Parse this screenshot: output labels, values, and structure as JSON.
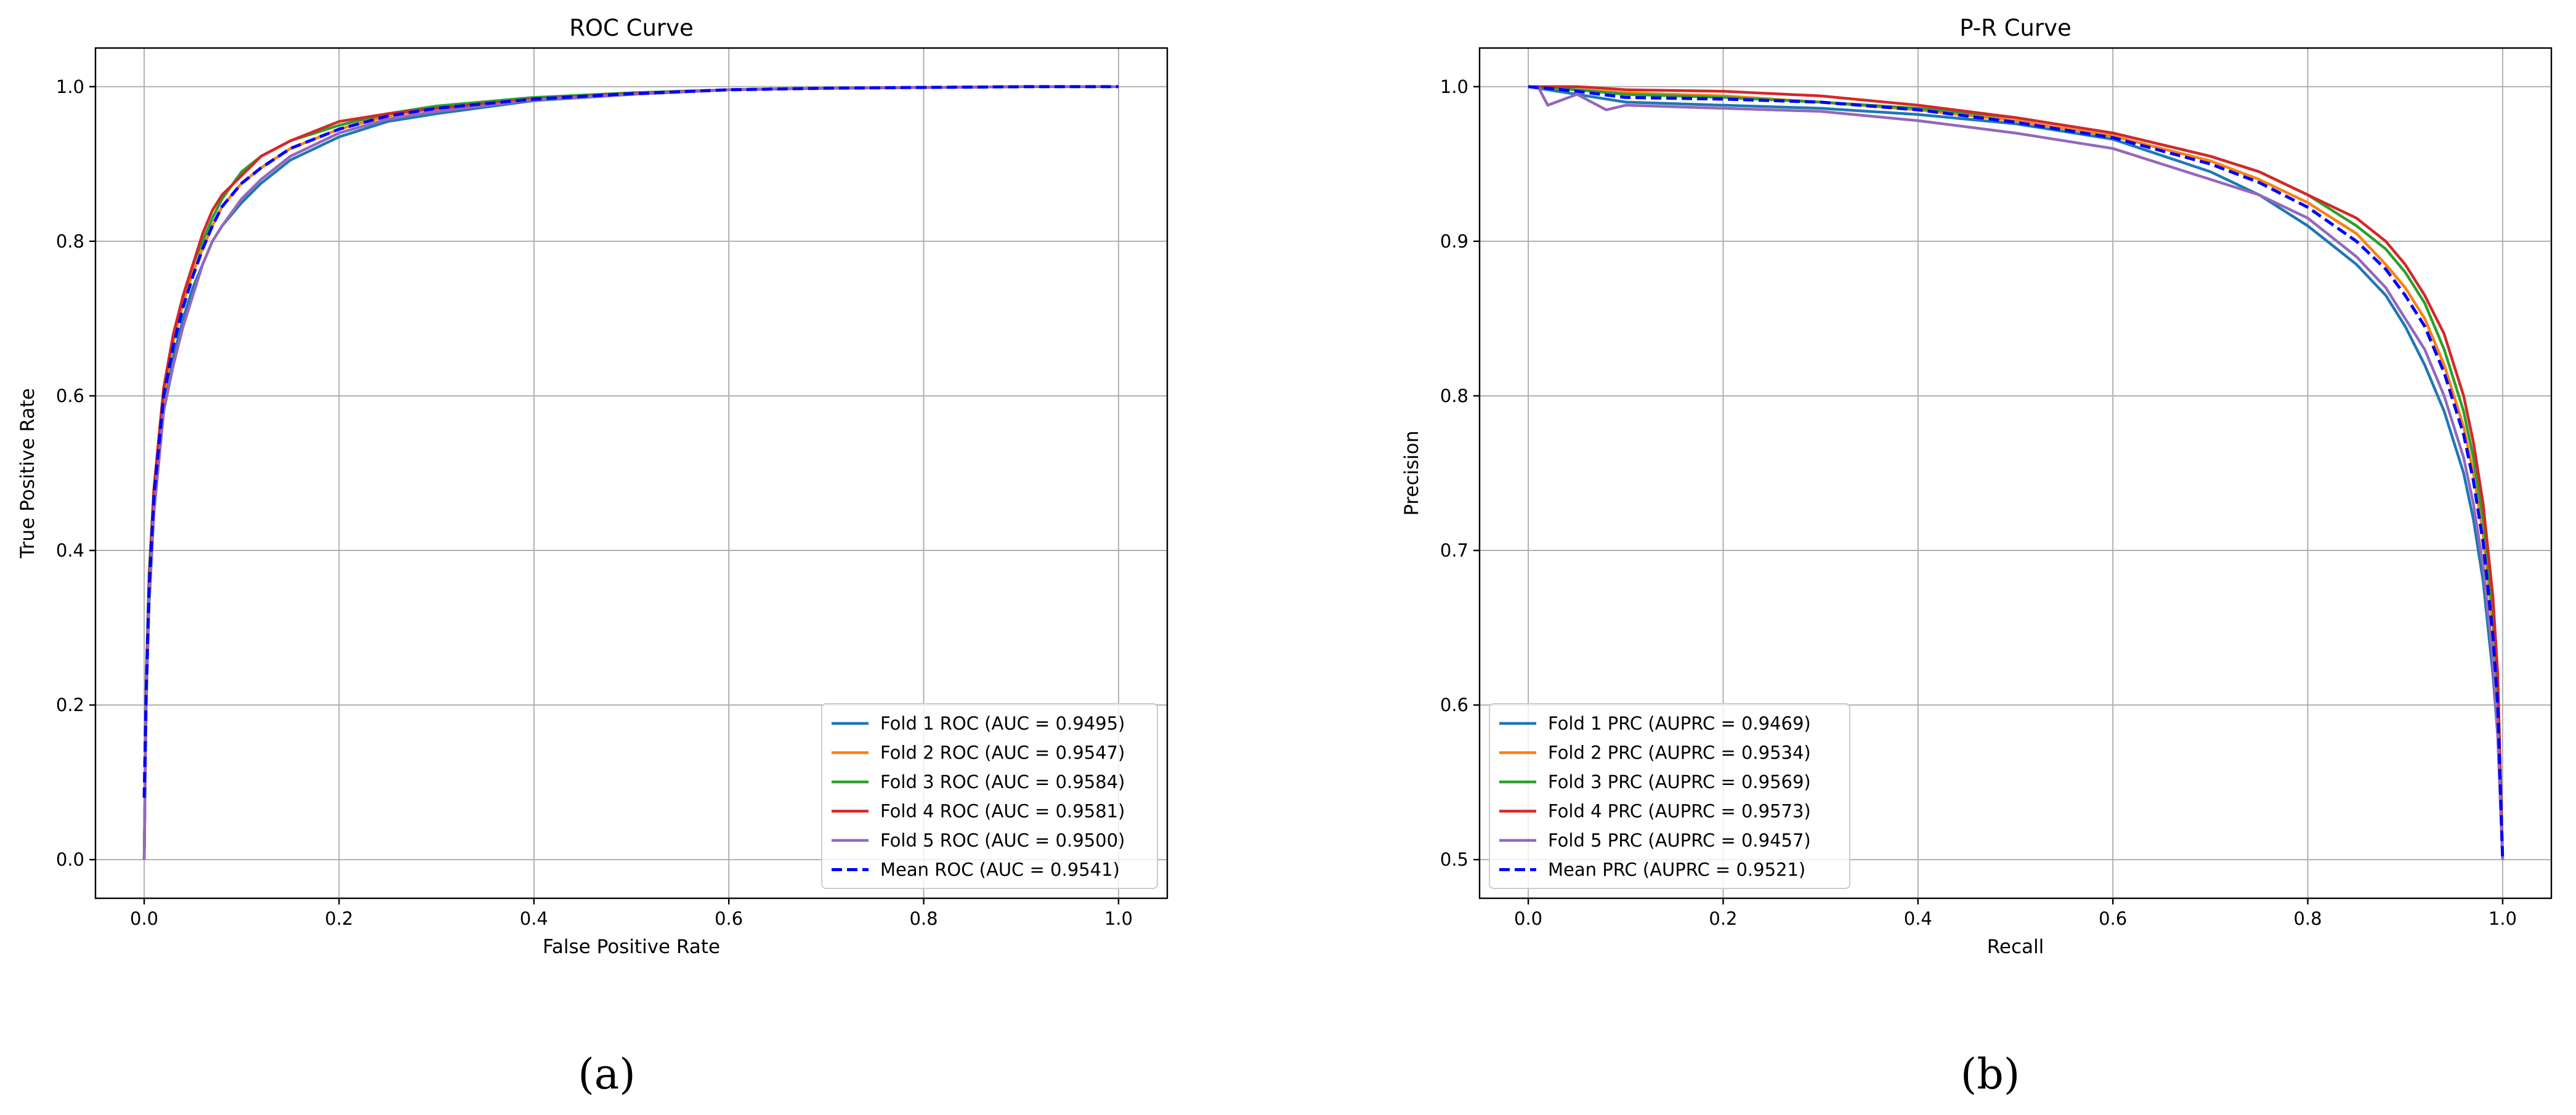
{
  "chart_data": [
    {
      "type": "line",
      "title": "ROC Curve",
      "xlabel": "False Positive Rate",
      "ylabel": "True Positive Rate",
      "xlim": [
        -0.05,
        1.05
      ],
      "ylim": [
        -0.05,
        1.05
      ],
      "xticks": [
        0.0,
        0.2,
        0.4,
        0.6,
        0.8,
        1.0
      ],
      "yticks": [
        0.0,
        0.2,
        0.4,
        0.6,
        0.8,
        1.0
      ],
      "tick_labels": [
        "0.0",
        "0.2",
        "0.4",
        "0.6",
        "0.8",
        "1.0"
      ],
      "grid": true,
      "legend_position": "lower-right",
      "caption": "(a)",
      "series": [
        {
          "name": "Fold 1 ROC (AUC = 0.9495)",
          "color": "#1f77b4",
          "dashed": false,
          "x": [
            0,
            0.002,
            0.005,
            0.01,
            0.02,
            0.03,
            0.04,
            0.05,
            0.06,
            0.07,
            0.08,
            0.1,
            0.12,
            0.15,
            0.2,
            0.25,
            0.3,
            0.4,
            0.5,
            0.6,
            0.7,
            0.8,
            0.9,
            1.0
          ],
          "y": [
            0,
            0.2,
            0.33,
            0.45,
            0.58,
            0.65,
            0.7,
            0.74,
            0.77,
            0.8,
            0.82,
            0.85,
            0.875,
            0.905,
            0.935,
            0.955,
            0.965,
            0.982,
            0.99,
            0.996,
            0.998,
            0.999,
            1.0,
            1.0
          ]
        },
        {
          "name": "Fold 2 ROC (AUC = 0.9547)",
          "color": "#ff7f0e",
          "dashed": false,
          "x": [
            0,
            0.002,
            0.005,
            0.01,
            0.02,
            0.03,
            0.04,
            0.05,
            0.06,
            0.07,
            0.08,
            0.1,
            0.12,
            0.15,
            0.2,
            0.25,
            0.3,
            0.4,
            0.5,
            0.6,
            0.7,
            0.8,
            0.9,
            1.0
          ],
          "y": [
            0,
            0.22,
            0.36,
            0.47,
            0.6,
            0.67,
            0.72,
            0.76,
            0.79,
            0.82,
            0.845,
            0.875,
            0.895,
            0.92,
            0.945,
            0.962,
            0.972,
            0.984,
            0.991,
            0.996,
            0.998,
            0.999,
            1.0,
            1.0
          ]
        },
        {
          "name": "Fold 3 ROC (AUC = 0.9584)",
          "color": "#2ca02c",
          "dashed": false,
          "x": [
            0,
            0.002,
            0.005,
            0.01,
            0.02,
            0.03,
            0.04,
            0.05,
            0.06,
            0.07,
            0.08,
            0.1,
            0.12,
            0.15,
            0.2,
            0.25,
            0.3,
            0.4,
            0.5,
            0.6,
            0.7,
            0.8,
            0.9,
            1.0
          ],
          "y": [
            0,
            0.23,
            0.37,
            0.48,
            0.61,
            0.68,
            0.73,
            0.77,
            0.8,
            0.83,
            0.855,
            0.89,
            0.91,
            0.93,
            0.95,
            0.965,
            0.975,
            0.986,
            0.992,
            0.996,
            0.998,
            0.999,
            1.0,
            1.0
          ]
        },
        {
          "name": "Fold 4 ROC (AUC = 0.9581)",
          "color": "#d62728",
          "dashed": false,
          "x": [
            0,
            0.002,
            0.005,
            0.01,
            0.02,
            0.03,
            0.04,
            0.05,
            0.06,
            0.07,
            0.08,
            0.1,
            0.12,
            0.15,
            0.2,
            0.25,
            0.3,
            0.4,
            0.5,
            0.6,
            0.7,
            0.8,
            0.9,
            1.0
          ],
          "y": [
            0,
            0.22,
            0.36,
            0.48,
            0.61,
            0.68,
            0.73,
            0.77,
            0.81,
            0.84,
            0.86,
            0.885,
            0.91,
            0.93,
            0.955,
            0.965,
            0.972,
            0.984,
            0.991,
            0.996,
            0.998,
            0.999,
            1.0,
            1.0
          ]
        },
        {
          "name": "Fold 5 ROC (AUC = 0.9500)",
          "color": "#9467bd",
          "dashed": false,
          "x": [
            0,
            0.002,
            0.005,
            0.01,
            0.02,
            0.03,
            0.04,
            0.05,
            0.06,
            0.07,
            0.08,
            0.1,
            0.12,
            0.15,
            0.2,
            0.25,
            0.3,
            0.4,
            0.5,
            0.6,
            0.7,
            0.8,
            0.9,
            1.0
          ],
          "y": [
            0,
            0.2,
            0.34,
            0.45,
            0.58,
            0.64,
            0.69,
            0.73,
            0.77,
            0.8,
            0.82,
            0.855,
            0.88,
            0.91,
            0.94,
            0.958,
            0.968,
            0.983,
            0.99,
            0.996,
            0.998,
            0.999,
            1.0,
            1.0
          ]
        },
        {
          "name": "Mean ROC (AUC = 0.9541)",
          "color": "#0000ff",
          "dashed": true,
          "x": [
            0,
            0.002,
            0.005,
            0.01,
            0.02,
            0.03,
            0.04,
            0.05,
            0.06,
            0.07,
            0.08,
            0.1,
            0.12,
            0.15,
            0.2,
            0.25,
            0.3,
            0.4,
            0.5,
            0.6,
            0.7,
            0.8,
            0.9,
            1.0
          ],
          "y": [
            0.08,
            0.22,
            0.35,
            0.47,
            0.6,
            0.665,
            0.715,
            0.755,
            0.79,
            0.82,
            0.845,
            0.875,
            0.895,
            0.92,
            0.945,
            0.962,
            0.972,
            0.984,
            0.991,
            0.996,
            0.998,
            0.999,
            1.0,
            1.0
          ]
        }
      ]
    },
    {
      "type": "line",
      "title": "P-R Curve",
      "xlabel": "Recall",
      "ylabel": "Precision",
      "xlim": [
        -0.05,
        1.05
      ],
      "ylim": [
        0.475,
        1.025
      ],
      "xticks": [
        0.0,
        0.2,
        0.4,
        0.6,
        0.8,
        1.0
      ],
      "yticks": [
        0.5,
        0.6,
        0.7,
        0.8,
        0.9,
        1.0
      ],
      "xtick_labels": [
        "0.0",
        "0.2",
        "0.4",
        "0.6",
        "0.8",
        "1.0"
      ],
      "ytick_labels": [
        "0.5",
        "0.6",
        "0.7",
        "0.8",
        "0.9",
        "1.0"
      ],
      "grid": true,
      "legend_position": "lower-left",
      "caption": "(b)",
      "series": [
        {
          "name": "Fold 1 PRC (AUPRC = 0.9469)",
          "color": "#1f77b4",
          "dashed": false,
          "x": [
            0,
            0.02,
            0.05,
            0.1,
            0.2,
            0.3,
            0.4,
            0.5,
            0.6,
            0.7,
            0.75,
            0.8,
            0.85,
            0.88,
            0.9,
            0.92,
            0.94,
            0.96,
            0.97,
            0.98,
            0.99,
            0.995,
            1.0
          ],
          "y": [
            1.0,
            0.998,
            0.995,
            0.99,
            0.988,
            0.986,
            0.982,
            0.976,
            0.966,
            0.945,
            0.93,
            0.91,
            0.885,
            0.865,
            0.845,
            0.82,
            0.79,
            0.75,
            0.72,
            0.68,
            0.62,
            0.58,
            0.5
          ]
        },
        {
          "name": "Fold 2 PRC (AUPRC = 0.9534)",
          "color": "#ff7f0e",
          "dashed": false,
          "x": [
            0,
            0.02,
            0.05,
            0.1,
            0.2,
            0.3,
            0.4,
            0.5,
            0.6,
            0.7,
            0.75,
            0.8,
            0.85,
            0.88,
            0.9,
            0.92,
            0.94,
            0.96,
            0.97,
            0.98,
            0.99,
            0.995,
            1.0
          ],
          "y": [
            1.0,
            0.999,
            0.998,
            0.996,
            0.994,
            0.99,
            0.985,
            0.978,
            0.968,
            0.952,
            0.94,
            0.925,
            0.905,
            0.885,
            0.87,
            0.85,
            0.82,
            0.78,
            0.75,
            0.71,
            0.65,
            0.6,
            0.5
          ]
        },
        {
          "name": "Fold 3 PRC (AUPRC = 0.9569)",
          "color": "#2ca02c",
          "dashed": false,
          "x": [
            0,
            0.02,
            0.05,
            0.1,
            0.2,
            0.3,
            0.4,
            0.5,
            0.6,
            0.7,
            0.75,
            0.8,
            0.85,
            0.88,
            0.9,
            0.92,
            0.94,
            0.96,
            0.97,
            0.98,
            0.99,
            0.995,
            1.0
          ],
          "y": [
            1.0,
            0.999,
            0.998,
            0.995,
            0.993,
            0.99,
            0.986,
            0.98,
            0.97,
            0.955,
            0.945,
            0.93,
            0.91,
            0.895,
            0.88,
            0.86,
            0.83,
            0.79,
            0.76,
            0.72,
            0.66,
            0.61,
            0.5
          ]
        },
        {
          "name": "Fold 4 PRC (AUPRC = 0.9573)",
          "color": "#d62728",
          "dashed": false,
          "x": [
            0,
            0.02,
            0.05,
            0.1,
            0.2,
            0.3,
            0.4,
            0.5,
            0.6,
            0.7,
            0.75,
            0.8,
            0.85,
            0.88,
            0.9,
            0.92,
            0.94,
            0.96,
            0.97,
            0.98,
            0.99,
            0.995,
            1.0
          ],
          "y": [
            1.0,
            1.0,
            1.0,
            0.998,
            0.997,
            0.994,
            0.988,
            0.98,
            0.97,
            0.955,
            0.945,
            0.93,
            0.915,
            0.9,
            0.885,
            0.865,
            0.84,
            0.8,
            0.77,
            0.73,
            0.67,
            0.62,
            0.5
          ]
        },
        {
          "name": "Fold 5 PRC (AUPRC = 0.9457)",
          "color": "#9467bd",
          "dashed": false,
          "x": [
            0,
            0.01,
            0.02,
            0.05,
            0.08,
            0.1,
            0.2,
            0.3,
            0.4,
            0.5,
            0.6,
            0.7,
            0.75,
            0.8,
            0.85,
            0.88,
            0.9,
            0.92,
            0.94,
            0.96,
            0.97,
            0.98,
            0.99,
            0.995,
            1.0
          ],
          "y": [
            1.0,
            1.0,
            0.988,
            0.995,
            0.985,
            0.988,
            0.986,
            0.984,
            0.978,
            0.97,
            0.96,
            0.94,
            0.93,
            0.915,
            0.89,
            0.87,
            0.85,
            0.83,
            0.8,
            0.76,
            0.73,
            0.69,
            0.63,
            0.58,
            0.5
          ]
        },
        {
          "name": "Mean PRC (AUPRC = 0.9521)",
          "color": "#0000ff",
          "dashed": true,
          "x": [
            0,
            0.02,
            0.05,
            0.1,
            0.2,
            0.3,
            0.4,
            0.5,
            0.6,
            0.7,
            0.75,
            0.8,
            0.85,
            0.88,
            0.9,
            0.92,
            0.94,
            0.96,
            0.97,
            0.98,
            0.99,
            0.995,
            1.0
          ],
          "y": [
            1.0,
            0.999,
            0.997,
            0.993,
            0.992,
            0.99,
            0.985,
            0.977,
            0.967,
            0.95,
            0.938,
            0.922,
            0.9,
            0.882,
            0.865,
            0.845,
            0.815,
            0.775,
            0.745,
            0.705,
            0.645,
            0.6,
            0.5
          ]
        }
      ]
    }
  ]
}
